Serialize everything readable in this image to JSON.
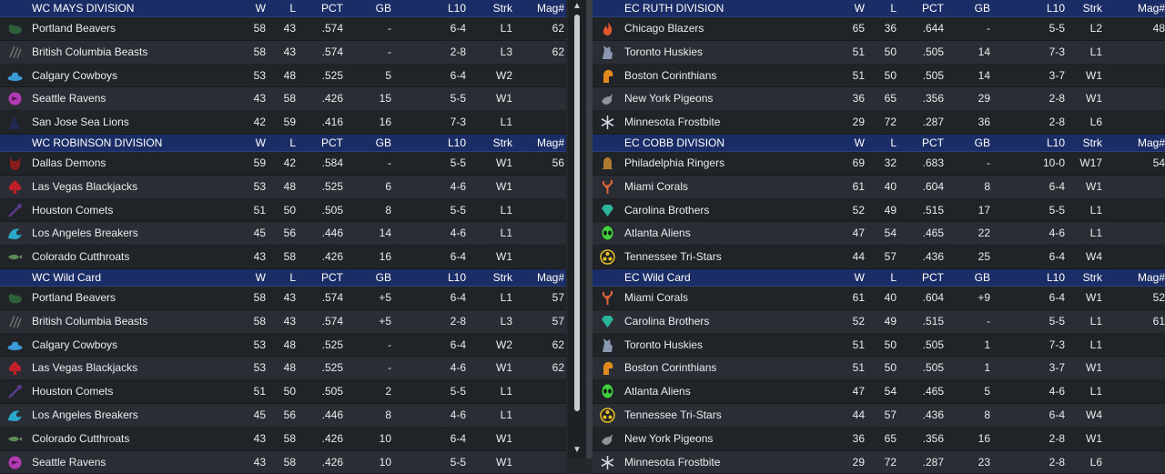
{
  "columns": {
    "w": "W",
    "l": "L",
    "pct": "PCT",
    "gb": "GB",
    "l10": "L10",
    "strk": "Strk",
    "mag": "Mag#"
  },
  "colors": {
    "header_bg": "#1b2d66",
    "row_dark": "#202328",
    "row_light": "#2a2d33",
    "text": "#e9ecef"
  },
  "left": [
    {
      "title": "WC MAYS DIVISION",
      "teams": [
        {
          "name": "Portland Beavers",
          "logo": "beaver-icon",
          "color": "#2f5e3a",
          "w": "58",
          "l": "43",
          "pct": ".574",
          "gb": "-",
          "l10": "6-4",
          "strk": "L1",
          "mag": "62"
        },
        {
          "name": "British Columbia Beasts",
          "logo": "claw-icon",
          "color": "#777777",
          "w": "58",
          "l": "43",
          "pct": ".574",
          "gb": "-",
          "l10": "2-8",
          "strk": "L3",
          "mag": "62"
        },
        {
          "name": "Calgary Cowboys",
          "logo": "cowboy-hat-icon",
          "color": "#3a9bd6",
          "w": "53",
          "l": "48",
          "pct": ".525",
          "gb": "5",
          "l10": "6-4",
          "strk": "W2",
          "mag": ""
        },
        {
          "name": "Seattle Ravens",
          "logo": "raven-icon",
          "color": "#b33ab5",
          "w": "43",
          "l": "58",
          "pct": ".426",
          "gb": "15",
          "l10": "5-5",
          "strk": "W1",
          "mag": ""
        },
        {
          "name": "San Jose Sea Lions",
          "logo": "sea-lion-icon",
          "color": "#1f2a55",
          "w": "42",
          "l": "59",
          "pct": ".416",
          "gb": "16",
          "l10": "7-3",
          "strk": "L1",
          "mag": ""
        }
      ]
    },
    {
      "title": "WC ROBINSON DIVISION",
      "teams": [
        {
          "name": "Dallas Demons",
          "logo": "demon-icon",
          "color": "#8a1c1c",
          "w": "59",
          "l": "42",
          "pct": ".584",
          "gb": "-",
          "l10": "5-5",
          "strk": "W1",
          "mag": "56"
        },
        {
          "name": "Las Vegas Blackjacks",
          "logo": "spade-icon",
          "color": "#c0202a",
          "w": "53",
          "l": "48",
          "pct": ".525",
          "gb": "6",
          "l10": "4-6",
          "strk": "W1",
          "mag": ""
        },
        {
          "name": "Houston Comets",
          "logo": "comet-icon",
          "color": "#5a3a8a",
          "w": "51",
          "l": "50",
          "pct": ".505",
          "gb": "8",
          "l10": "5-5",
          "strk": "L1",
          "mag": ""
        },
        {
          "name": "Los Angeles Breakers",
          "logo": "wave-icon",
          "color": "#2aa6c9",
          "w": "45",
          "l": "56",
          "pct": ".446",
          "gb": "14",
          "l10": "4-6",
          "strk": "L1",
          "mag": ""
        },
        {
          "name": "Colorado Cutthroats",
          "logo": "fish-icon",
          "color": "#5f8a5a",
          "w": "43",
          "l": "58",
          "pct": ".426",
          "gb": "16",
          "l10": "6-4",
          "strk": "W1",
          "mag": ""
        }
      ]
    },
    {
      "title": "WC  Wild Card",
      "teams": [
        {
          "name": "Portland Beavers",
          "logo": "beaver-icon",
          "color": "#2f5e3a",
          "w": "58",
          "l": "43",
          "pct": ".574",
          "gb": "+5",
          "l10": "6-4",
          "strk": "L1",
          "mag": "57"
        },
        {
          "name": "British Columbia Beasts",
          "logo": "claw-icon",
          "color": "#777777",
          "w": "58",
          "l": "43",
          "pct": ".574",
          "gb": "+5",
          "l10": "2-8",
          "strk": "L3",
          "mag": "57"
        },
        {
          "name": "Calgary Cowboys",
          "logo": "cowboy-hat-icon",
          "color": "#3a9bd6",
          "w": "53",
          "l": "48",
          "pct": ".525",
          "gb": "-",
          "l10": "6-4",
          "strk": "W2",
          "mag": "62"
        },
        {
          "name": "Las Vegas Blackjacks",
          "logo": "spade-icon",
          "color": "#c0202a",
          "w": "53",
          "l": "48",
          "pct": ".525",
          "gb": "-",
          "l10": "4-6",
          "strk": "W1",
          "mag": "62"
        },
        {
          "name": "Houston Comets",
          "logo": "comet-icon",
          "color": "#5a3a8a",
          "w": "51",
          "l": "50",
          "pct": ".505",
          "gb": "2",
          "l10": "5-5",
          "strk": "L1",
          "mag": ""
        },
        {
          "name": "Los Angeles Breakers",
          "logo": "wave-icon",
          "color": "#2aa6c9",
          "w": "45",
          "l": "56",
          "pct": ".446",
          "gb": "8",
          "l10": "4-6",
          "strk": "L1",
          "mag": ""
        },
        {
          "name": "Colorado Cutthroats",
          "logo": "fish-icon",
          "color": "#5f8a5a",
          "w": "43",
          "l": "58",
          "pct": ".426",
          "gb": "10",
          "l10": "6-4",
          "strk": "W1",
          "mag": ""
        },
        {
          "name": "Seattle Ravens",
          "logo": "raven-icon",
          "color": "#b33ab5",
          "w": "43",
          "l": "58",
          "pct": ".426",
          "gb": "10",
          "l10": "5-5",
          "strk": "W1",
          "mag": ""
        }
      ]
    }
  ],
  "right": [
    {
      "title": "EC RUTH DIVISION",
      "teams": [
        {
          "name": "Chicago Blazers",
          "logo": "flame-icon",
          "color": "#e2572a",
          "w": "65",
          "l": "36",
          "pct": ".644",
          "gb": "-",
          "l10": "5-5",
          "strk": "L2",
          "mag": "48"
        },
        {
          "name": "Toronto Huskies",
          "logo": "husky-icon",
          "color": "#8a98b0",
          "w": "51",
          "l": "50",
          "pct": ".505",
          "gb": "14",
          "l10": "7-3",
          "strk": "L1",
          "mag": ""
        },
        {
          "name": "Boston Corinthians",
          "logo": "helmet-icon",
          "color": "#e08a1e",
          "w": "51",
          "l": "50",
          "pct": ".505",
          "gb": "14",
          "l10": "3-7",
          "strk": "W1",
          "mag": ""
        },
        {
          "name": "New York Pigeons",
          "logo": "pigeon-icon",
          "color": "#8f939a",
          "w": "36",
          "l": "65",
          "pct": ".356",
          "gb": "29",
          "l10": "2-8",
          "strk": "W1",
          "mag": ""
        },
        {
          "name": "Minnesota Frostbite",
          "logo": "snowflake-icon",
          "color": "#d7dde6",
          "w": "29",
          "l": "72",
          "pct": ".287",
          "gb": "36",
          "l10": "2-8",
          "strk": "L6",
          "mag": ""
        }
      ]
    },
    {
      "title": "EC COBB DIVISION",
      "teams": [
        {
          "name": "Philadelphia Ringers",
          "logo": "bell-icon",
          "color": "#b07a30",
          "w": "69",
          "l": "32",
          "pct": ".683",
          "gb": "-",
          "l10": "10-0",
          "strk": "W17",
          "mag": "54"
        },
        {
          "name": "Miami Corals",
          "logo": "coral-icon",
          "color": "#e0643a",
          "w": "61",
          "l": "40",
          "pct": ".604",
          "gb": "8",
          "l10": "6-4",
          "strk": "W1",
          "mag": ""
        },
        {
          "name": "Carolina Brothers",
          "logo": "diamond-icon",
          "color": "#2ab59a",
          "w": "52",
          "l": "49",
          "pct": ".515",
          "gb": "17",
          "l10": "5-5",
          "strk": "L1",
          "mag": ""
        },
        {
          "name": "Atlanta Aliens",
          "logo": "alien-icon",
          "color": "#3fd23a",
          "w": "47",
          "l": "54",
          "pct": ".465",
          "gb": "22",
          "l10": "4-6",
          "strk": "L1",
          "mag": ""
        },
        {
          "name": "Tennessee Tri-Stars",
          "logo": "tri-star-icon",
          "color": "#e8c02a",
          "w": "44",
          "l": "57",
          "pct": ".436",
          "gb": "25",
          "l10": "6-4",
          "strk": "W4",
          "mag": ""
        }
      ]
    },
    {
      "title": "EC  Wild Card",
      "teams": [
        {
          "name": "Miami Corals",
          "logo": "coral-icon",
          "color": "#e0643a",
          "w": "61",
          "l": "40",
          "pct": ".604",
          "gb": "+9",
          "l10": "6-4",
          "strk": "W1",
          "mag": "52"
        },
        {
          "name": "Carolina Brothers",
          "logo": "diamond-icon",
          "color": "#2ab59a",
          "w": "52",
          "l": "49",
          "pct": ".515",
          "gb": "-",
          "l10": "5-5",
          "strk": "L1",
          "mag": "61"
        },
        {
          "name": "Toronto Huskies",
          "logo": "husky-icon",
          "color": "#8a98b0",
          "w": "51",
          "l": "50",
          "pct": ".505",
          "gb": "1",
          "l10": "7-3",
          "strk": "L1",
          "mag": ""
        },
        {
          "name": "Boston Corinthians",
          "logo": "helmet-icon",
          "color": "#e08a1e",
          "w": "51",
          "l": "50",
          "pct": ".505",
          "gb": "1",
          "l10": "3-7",
          "strk": "W1",
          "mag": ""
        },
        {
          "name": "Atlanta Aliens",
          "logo": "alien-icon",
          "color": "#3fd23a",
          "w": "47",
          "l": "54",
          "pct": ".465",
          "gb": "5",
          "l10": "4-6",
          "strk": "L1",
          "mag": ""
        },
        {
          "name": "Tennessee Tri-Stars",
          "logo": "tri-star-icon",
          "color": "#e8c02a",
          "w": "44",
          "l": "57",
          "pct": ".436",
          "gb": "8",
          "l10": "6-4",
          "strk": "W4",
          "mag": ""
        },
        {
          "name": "New York Pigeons",
          "logo": "pigeon-icon",
          "color": "#8f939a",
          "w": "36",
          "l": "65",
          "pct": ".356",
          "gb": "16",
          "l10": "2-8",
          "strk": "W1",
          "mag": ""
        },
        {
          "name": "Minnesota Frostbite",
          "logo": "snowflake-icon",
          "color": "#d7dde6",
          "w": "29",
          "l": "72",
          "pct": ".287",
          "gb": "23",
          "l10": "2-8",
          "strk": "L6",
          "mag": ""
        }
      ]
    }
  ]
}
